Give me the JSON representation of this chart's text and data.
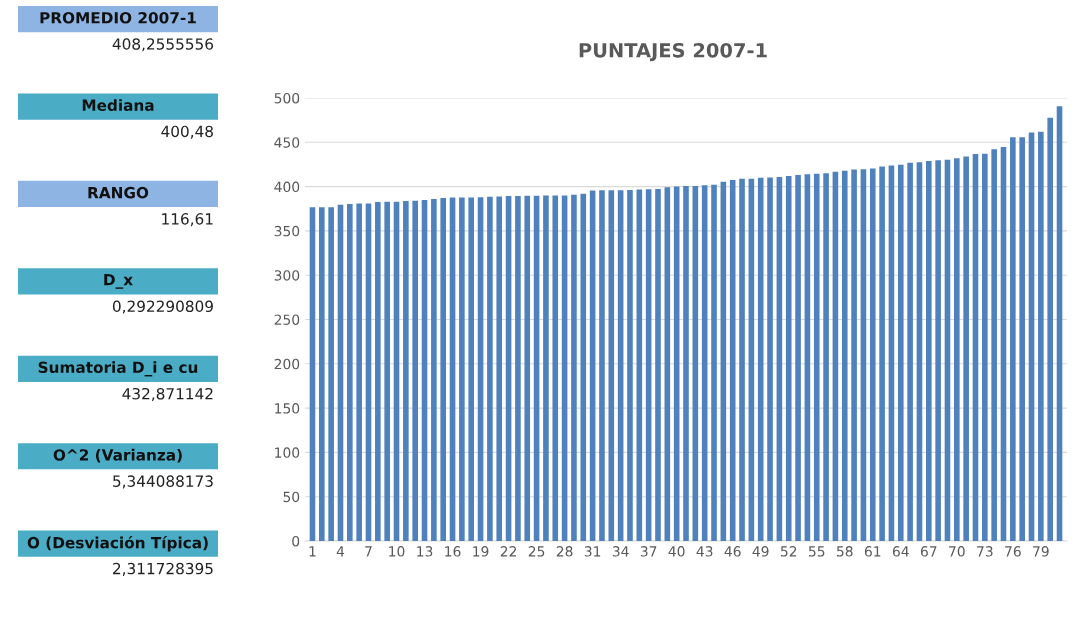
{
  "chart_data": [
    {
      "type": "other",
      "annotations": [
        "PROMEDIO 2007-1",
        "408,2555556",
        "Mediana",
        "400,48",
        "RANGO",
        "116,61",
        "D_x",
        "0,292290809",
        "Sumatoria D_i e cu",
        "432,871142",
        "O^2 (Varianza)",
        "5,344088173",
        "O (Desviación Típica)",
        "2,311728395"
      ],
      "colors": [
        "#8eb4e3",
        "#4bacc6",
        "#8eb4e3",
        "#4bacc6",
        "#4bacc6",
        "#4bacc6",
        "#4bacc6"
      ]
    },
    {
      "type": "bar",
      "title": "PUNTAJES 2007-1",
      "categories": [
        "1",
        null,
        null,
        "4",
        null,
        null,
        "7",
        null,
        null,
        "10",
        null,
        null,
        "13",
        null,
        null,
        "16",
        null,
        null,
        "19",
        null,
        null,
        "22",
        null,
        null,
        "25",
        null,
        null,
        "28",
        null,
        null,
        "31",
        null,
        null,
        "34",
        null,
        null,
        "37",
        null,
        null,
        "40",
        null,
        null,
        "43",
        null,
        null,
        "46",
        null,
        null,
        "49",
        null,
        null,
        "52",
        null,
        null,
        "55",
        null,
        null,
        "58",
        null,
        null,
        "61",
        null,
        null,
        "64",
        null,
        null,
        "67",
        null,
        null,
        "70",
        null,
        null,
        "73",
        null,
        null,
        "76",
        null,
        null,
        "79",
        null,
        null
      ],
      "values": [
        376.7,
        376.7,
        376.7,
        379.6,
        380.4,
        381,
        381,
        382.6,
        383,
        383,
        383.7,
        384,
        384.8,
        386,
        387,
        387.8,
        387.8,
        387.8,
        388,
        388.5,
        388.9,
        389.3,
        389.3,
        389.6,
        389.6,
        390,
        390,
        390,
        390.7,
        391.9,
        395.6,
        395.9,
        395.9,
        395.9,
        396.3,
        396.7,
        397,
        397.4,
        399.3,
        400,
        400.7,
        400.7,
        401.5,
        402,
        405.5,
        407.4,
        409,
        409,
        410,
        410.4,
        410.7,
        412,
        413,
        414,
        414.4,
        415.2,
        416.7,
        417.8,
        419.3,
        419.6,
        420.4,
        422.6,
        423.7,
        424.8,
        427,
        427.4,
        428.9,
        429.6,
        430.4,
        431.9,
        434,
        436.7,
        437,
        442.2,
        444.8,
        455.6,
        455.6,
        461,
        462,
        477.8,
        490.7
      ],
      "color": "#4f81bd",
      "ylim": [
        0,
        500
      ],
      "yticks": [
        0,
        50,
        100,
        150,
        200,
        250,
        300,
        350,
        400,
        450,
        500
      ],
      "grid": "y"
    }
  ]
}
